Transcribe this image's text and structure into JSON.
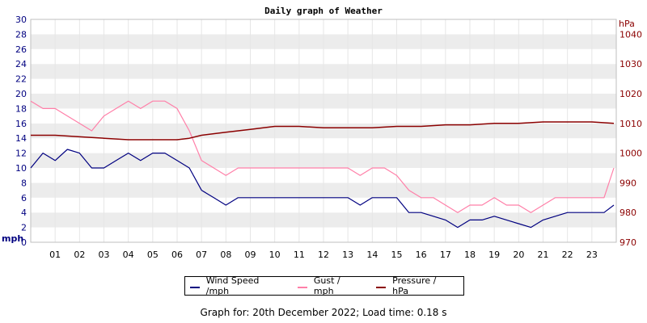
{
  "chart_data": {
    "type": "line",
    "title": "Daily graph of Weather",
    "ylabel_left": "mph",
    "ylabel_right": "hPa",
    "y_left_range": [
      0,
      30
    ],
    "y_left_ticks": [
      0,
      2,
      4,
      6,
      8,
      10,
      12,
      14,
      16,
      18,
      20,
      22,
      24,
      26,
      28,
      30
    ],
    "y_right_range": [
      970,
      1045
    ],
    "y_right_ticks": [
      970,
      980,
      990,
      1000,
      1010,
      1020,
      1030,
      1040
    ],
    "x_range": [
      0,
      24
    ],
    "x_ticks": [
      "01",
      "02",
      "03",
      "04",
      "05",
      "06",
      "07",
      "08",
      "09",
      "10",
      "11",
      "12",
      "13",
      "14",
      "15",
      "16",
      "17",
      "18",
      "19",
      "20",
      "21",
      "22",
      "23"
    ],
    "grid": "horizontal alternating bands",
    "legend_position": "bottom",
    "series": [
      {
        "name": "Wind Speed /mph",
        "color": "#000080",
        "axis": "left",
        "x": [
          0,
          0.5,
          1,
          1.5,
          2,
          2.5,
          3,
          3.5,
          4,
          4.5,
          5,
          5.5,
          6,
          6.5,
          7,
          7.5,
          8,
          8.5,
          9,
          9.5,
          10,
          10.5,
          11,
          11.5,
          12,
          12.5,
          13,
          13.5,
          14,
          14.5,
          15,
          15.5,
          16,
          16.5,
          17,
          17.5,
          18,
          18.5,
          19,
          19.5,
          20,
          20.5,
          21,
          21.5,
          22,
          22.5,
          23,
          23.5,
          23.9
        ],
        "values": [
          10,
          12,
          11,
          12.5,
          12,
          10,
          10,
          11,
          12,
          11,
          12,
          12,
          11,
          10,
          7,
          6,
          5,
          6,
          6,
          6,
          6,
          6,
          6,
          6,
          6,
          6,
          6,
          5,
          6,
          6,
          6,
          4,
          4,
          3.5,
          3,
          2,
          3,
          3,
          3.5,
          3,
          2.5,
          2,
          3,
          3.5,
          4,
          4,
          4,
          4,
          5
        ]
      },
      {
        "name": "Gust / mph",
        "color": "#ff7fa8",
        "axis": "left",
        "x": [
          0,
          0.5,
          1,
          1.5,
          2,
          2.5,
          3,
          3.5,
          4,
          4.5,
          5,
          5.5,
          6,
          6.5,
          7,
          7.5,
          8,
          8.5,
          9,
          9.5,
          10,
          10.5,
          11,
          11.5,
          12,
          12.5,
          13,
          13.5,
          14,
          14.5,
          15,
          15.5,
          16,
          16.5,
          17,
          17.5,
          18,
          18.5,
          19,
          19.5,
          20,
          20.5,
          21,
          21.5,
          22,
          22.5,
          23,
          23.5,
          23.9
        ],
        "values": [
          19,
          18,
          18,
          17,
          16,
          15,
          17,
          18,
          19,
          18,
          19,
          19,
          18,
          15,
          11,
          10,
          9,
          10,
          10,
          10,
          10,
          10,
          10,
          10,
          10,
          10,
          10,
          9,
          10,
          10,
          9,
          7,
          6,
          6,
          5,
          4,
          5,
          5,
          6,
          5,
          5,
          4,
          5,
          6,
          6,
          6,
          6,
          6,
          10
        ]
      },
      {
        "name": "Pressure / hPa",
        "color": "#8b0000",
        "axis": "right",
        "x": [
          0,
          1,
          2,
          3,
          4,
          5,
          6,
          6.5,
          7,
          8,
          9,
          10,
          11,
          12,
          13,
          14,
          15,
          16,
          17,
          18,
          19,
          20,
          21,
          22,
          23,
          23.9
        ],
        "values": [
          1006,
          1006,
          1005.5,
          1005,
          1004.5,
          1004.5,
          1004.5,
          1005,
          1006,
          1007,
          1008,
          1009,
          1009,
          1008.5,
          1008.5,
          1008.5,
          1009,
          1009,
          1009.5,
          1009.5,
          1010,
          1010,
          1010.5,
          1010.5,
          1010.5,
          1010
        ]
      }
    ]
  },
  "legend": {
    "wind": "Wind Speed /mph",
    "gust": "Gust / mph",
    "pressure": "Pressure / hPa"
  },
  "footer": "Graph for: 20th December 2022; Load time: 0.18 s",
  "colors": {
    "band_light": "#ffffff",
    "band_dark": "#ececec",
    "grid_vertical": "#e6e6e6",
    "left_axis_text": "#000080",
    "right_axis_text": "#8b0000"
  }
}
